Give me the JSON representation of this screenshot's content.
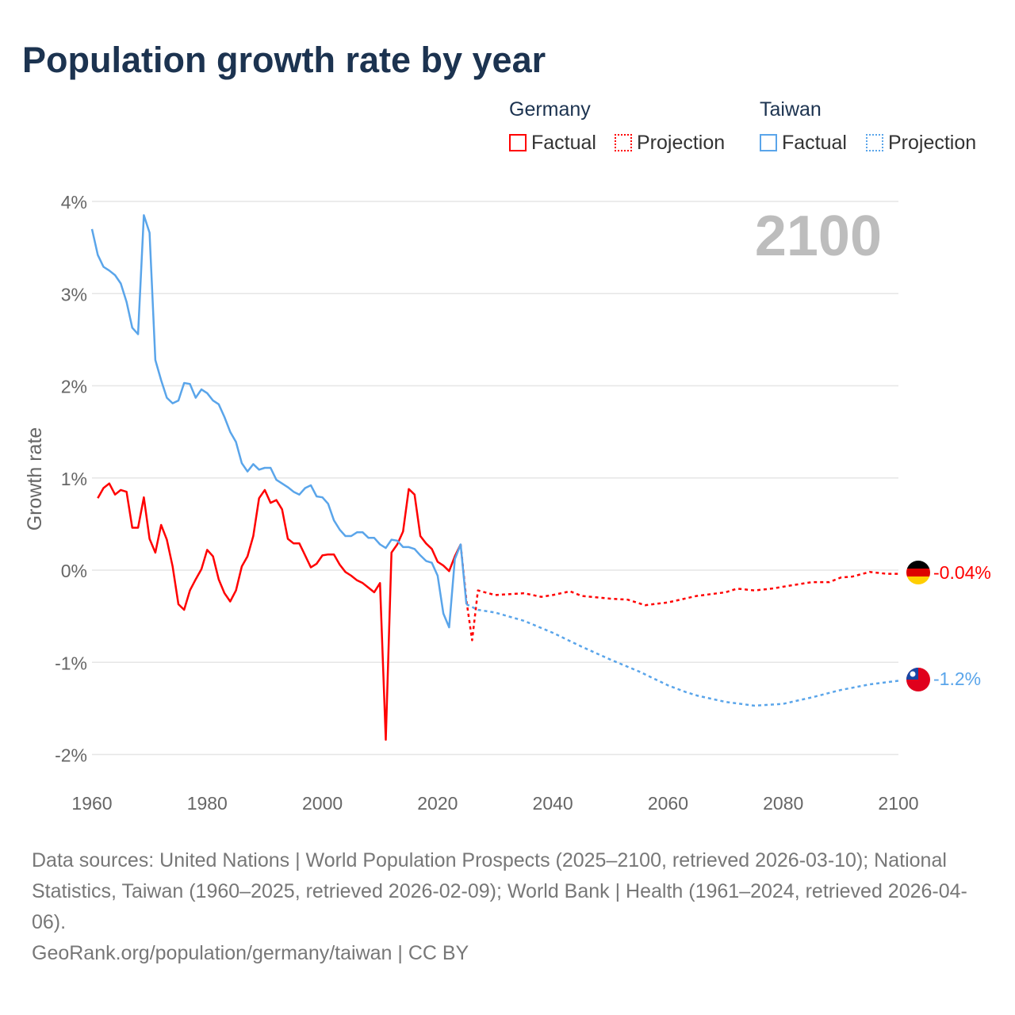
{
  "title": "Population growth rate by year",
  "legend": {
    "groups": [
      {
        "name": "Germany",
        "factual": "Factual",
        "projection": "Projection",
        "color": "#ff0000"
      },
      {
        "name": "Taiwan",
        "factual": "Factual",
        "projection": "Projection",
        "color": "#5aa5ea"
      }
    ]
  },
  "year_badge": "2100",
  "end_labels": {
    "germany": "-0.04%",
    "taiwan": "-1.2%"
  },
  "sources": "Data sources: United Nations | World Population Prospects (2025–2100, retrieved 2026-03-10); National Statistics, Taiwan (1960–2025, retrieved 2026-02-09); World Bank | Health (1961–2024, retrieved 2026-04-06).",
  "credit": "GeoRank.org/population/germany/taiwan | CC BY",
  "chart_data": {
    "type": "line",
    "ylabel": "Growth rate",
    "xlabel": "",
    "xlim": [
      1960,
      2100
    ],
    "ylim": [
      -2,
      4
    ],
    "xticks": [
      "1960",
      "1980",
      "2000",
      "2020",
      "2040",
      "2060",
      "2080",
      "2100"
    ],
    "yticks": [
      "4%",
      "3%",
      "2%",
      "1%",
      "0%",
      "-1%",
      "-2%"
    ],
    "series": [
      {
        "name": "Germany Factual",
        "color": "#ff0000",
        "dashed": false,
        "start": 1961,
        "values": [
          0.78,
          0.89,
          0.94,
          0.82,
          0.87,
          0.85,
          0.46,
          0.46,
          0.79,
          0.34,
          0.19,
          0.49,
          0.33,
          0.04,
          -0.37,
          -0.43,
          -0.22,
          -0.1,
          0.01,
          0.22,
          0.15,
          -0.1,
          -0.25,
          -0.34,
          -0.22,
          0.04,
          0.15,
          0.37,
          0.78,
          0.87,
          0.73,
          0.76,
          0.66,
          0.34,
          0.29,
          0.29,
          0.16,
          0.03,
          0.07,
          0.16,
          0.17,
          0.17,
          0.06,
          -0.02,
          -0.06,
          -0.11,
          -0.14,
          -0.19,
          -0.24,
          -0.14,
          -1.84,
          0.19,
          0.28,
          0.42,
          0.88,
          0.82,
          0.37,
          0.29,
          0.23,
          0.09,
          0.05,
          -0.01,
          0.15,
          0.28
        ]
      },
      {
        "name": "Germany Projection",
        "color": "#ff0000",
        "dashed": true,
        "x": [
          2024,
          2025,
          2026,
          2027,
          2030,
          2035,
          2038,
          2040,
          2043,
          2045,
          2050,
          2053,
          2056,
          2060,
          2065,
          2070,
          2072,
          2075,
          2078,
          2080,
          2085,
          2088,
          2090,
          2092,
          2095,
          2098,
          2100
        ],
        "values": [
          0.28,
          -0.33,
          -0.76,
          -0.22,
          -0.27,
          -0.25,
          -0.29,
          -0.27,
          -0.23,
          -0.28,
          -0.31,
          -0.32,
          -0.38,
          -0.35,
          -0.28,
          -0.24,
          -0.2,
          -0.22,
          -0.2,
          -0.18,
          -0.13,
          -0.13,
          -0.08,
          -0.07,
          -0.02,
          -0.04,
          -0.04
        ]
      },
      {
        "name": "Taiwan Factual",
        "color": "#5aa5ea",
        "dashed": false,
        "start": 1960,
        "values": [
          3.7,
          3.42,
          3.29,
          3.25,
          3.2,
          3.11,
          2.91,
          2.63,
          2.56,
          3.85,
          3.66,
          2.28,
          2.06,
          1.87,
          1.81,
          1.84,
          2.03,
          2.02,
          1.87,
          1.96,
          1.92,
          1.84,
          1.8,
          1.66,
          1.5,
          1.39,
          1.16,
          1.07,
          1.15,
          1.09,
          1.11,
          1.11,
          0.98,
          0.94,
          0.9,
          0.85,
          0.82,
          0.89,
          0.92,
          0.8,
          0.79,
          0.72,
          0.54,
          0.44,
          0.37,
          0.37,
          0.41,
          0.41,
          0.35,
          0.35,
          0.28,
          0.24,
          0.33,
          0.32,
          0.25,
          0.25,
          0.23,
          0.16,
          0.1,
          0.08,
          -0.06,
          -0.47,
          -0.62,
          0.12,
          0.28,
          -0.37
        ]
      },
      {
        "name": "Taiwan Projection",
        "color": "#5aa5ea",
        "dashed": true,
        "x": [
          2025,
          2027,
          2030,
          2035,
          2040,
          2045,
          2050,
          2055,
          2060,
          2063,
          2065,
          2070,
          2075,
          2080,
          2085,
          2090,
          2095,
          2100
        ],
        "values": [
          -0.37,
          -0.43,
          -0.46,
          -0.55,
          -0.68,
          -0.83,
          -0.97,
          -1.1,
          -1.25,
          -1.32,
          -1.36,
          -1.43,
          -1.47,
          -1.45,
          -1.38,
          -1.3,
          -1.24,
          -1.2
        ]
      }
    ]
  }
}
